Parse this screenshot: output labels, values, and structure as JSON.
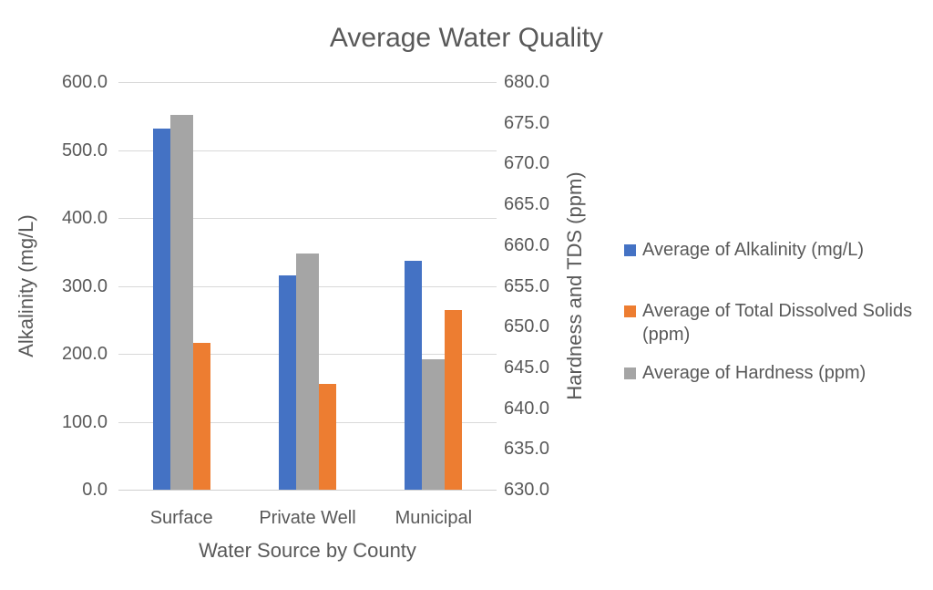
{
  "chart_data": {
    "type": "bar",
    "title": "Average Water Quality",
    "xlabel": "Water Source by County",
    "ylabel_left": "Alkalinity (mg/L)",
    "ylabel_right": "Hardness and TDS (ppm)",
    "categories": [
      "Surface",
      "Private Well",
      "Municipal"
    ],
    "series": [
      {
        "name": "Average of Alkalinity (mg/L)",
        "key": "alkalinity",
        "color": "#4472C4",
        "axis": "left",
        "values": [
          532,
          315,
          337
        ]
      },
      {
        "name": "Average of Total Dissolved Solids (ppm)",
        "key": "total-dissolved-solids",
        "color": "#ED7D31",
        "axis": "right",
        "values": [
          648,
          643,
          652
        ]
      },
      {
        "name": "Average of Hardness (ppm)",
        "key": "hardness",
        "color": "#A5A5A5",
        "axis": "right",
        "values": [
          676,
          659,
          646
        ]
      }
    ],
    "left_axis": {
      "min": 0,
      "max": 600,
      "step": 100,
      "decimals": 1
    },
    "right_axis": {
      "min": 630,
      "max": 680,
      "step": 5,
      "decimals": 1
    },
    "grid": true,
    "legend_position": "right",
    "background_color": "#ffffff",
    "text_color": "#595959",
    "gridline_color": "#d9d9d9"
  }
}
